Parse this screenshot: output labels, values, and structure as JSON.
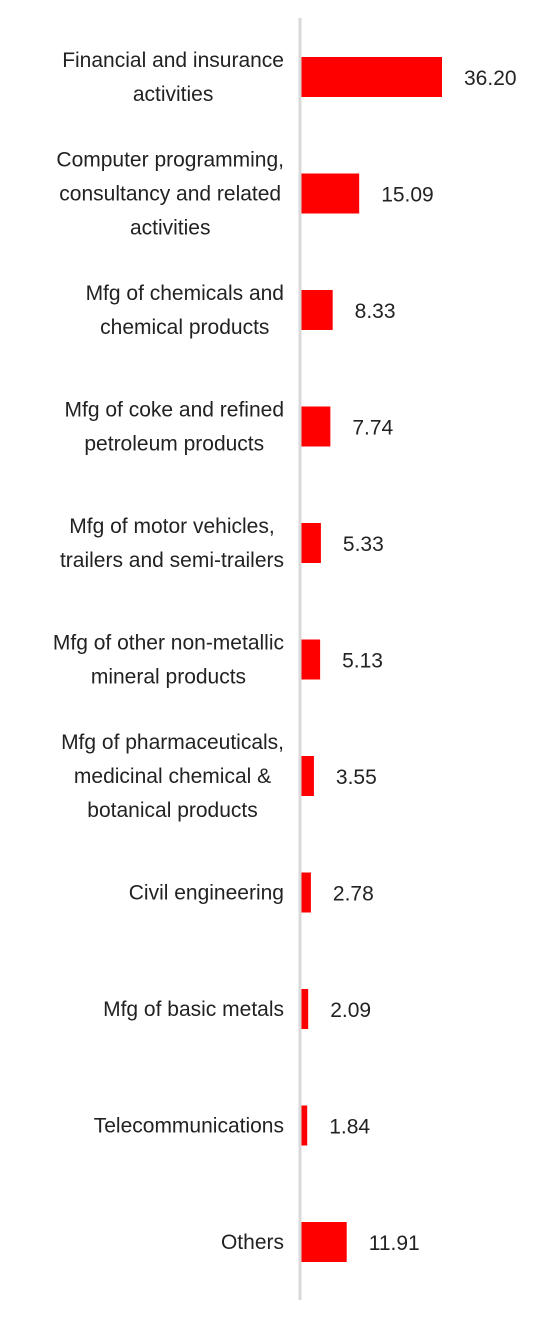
{
  "chart_data": {
    "type": "bar",
    "orientation": "horizontal",
    "categories": [
      [
        "Financial and insurance",
        "activities"
      ],
      [
        "Computer programming,",
        "consultancy and related",
        "activities"
      ],
      [
        "Mfg of chemicals and",
        "chemical products"
      ],
      [
        "Mfg of coke and refined",
        "petroleum products"
      ],
      [
        "Mfg of motor vehicles,",
        "trailers and semi-trailers"
      ],
      [
        "Mfg of other non-metallic",
        "mineral products"
      ],
      [
        "Mfg of pharmaceuticals,",
        "medicinal chemical &",
        "botanical products"
      ],
      [
        "Civil engineering"
      ],
      [
        "Mfg of basic metals"
      ],
      [
        "Telecommunications"
      ],
      [
        "Others"
      ]
    ],
    "values": [
      36.2,
      15.09,
      8.33,
      7.74,
      5.33,
      5.13,
      3.55,
      2.78,
      2.09,
      1.84,
      11.91
    ],
    "value_labels": [
      "36.20",
      "15.09",
      "8.33",
      "7.74",
      "5.33",
      "5.13",
      "3.55",
      "2.78",
      "2.09",
      "1.84",
      "11.91"
    ],
    "xlim": [
      0,
      36.2
    ],
    "grid": false,
    "legend": "none",
    "colors": {
      "bar": "#ff0000",
      "axis": "#d9d9d9",
      "text": "#222222"
    }
  }
}
